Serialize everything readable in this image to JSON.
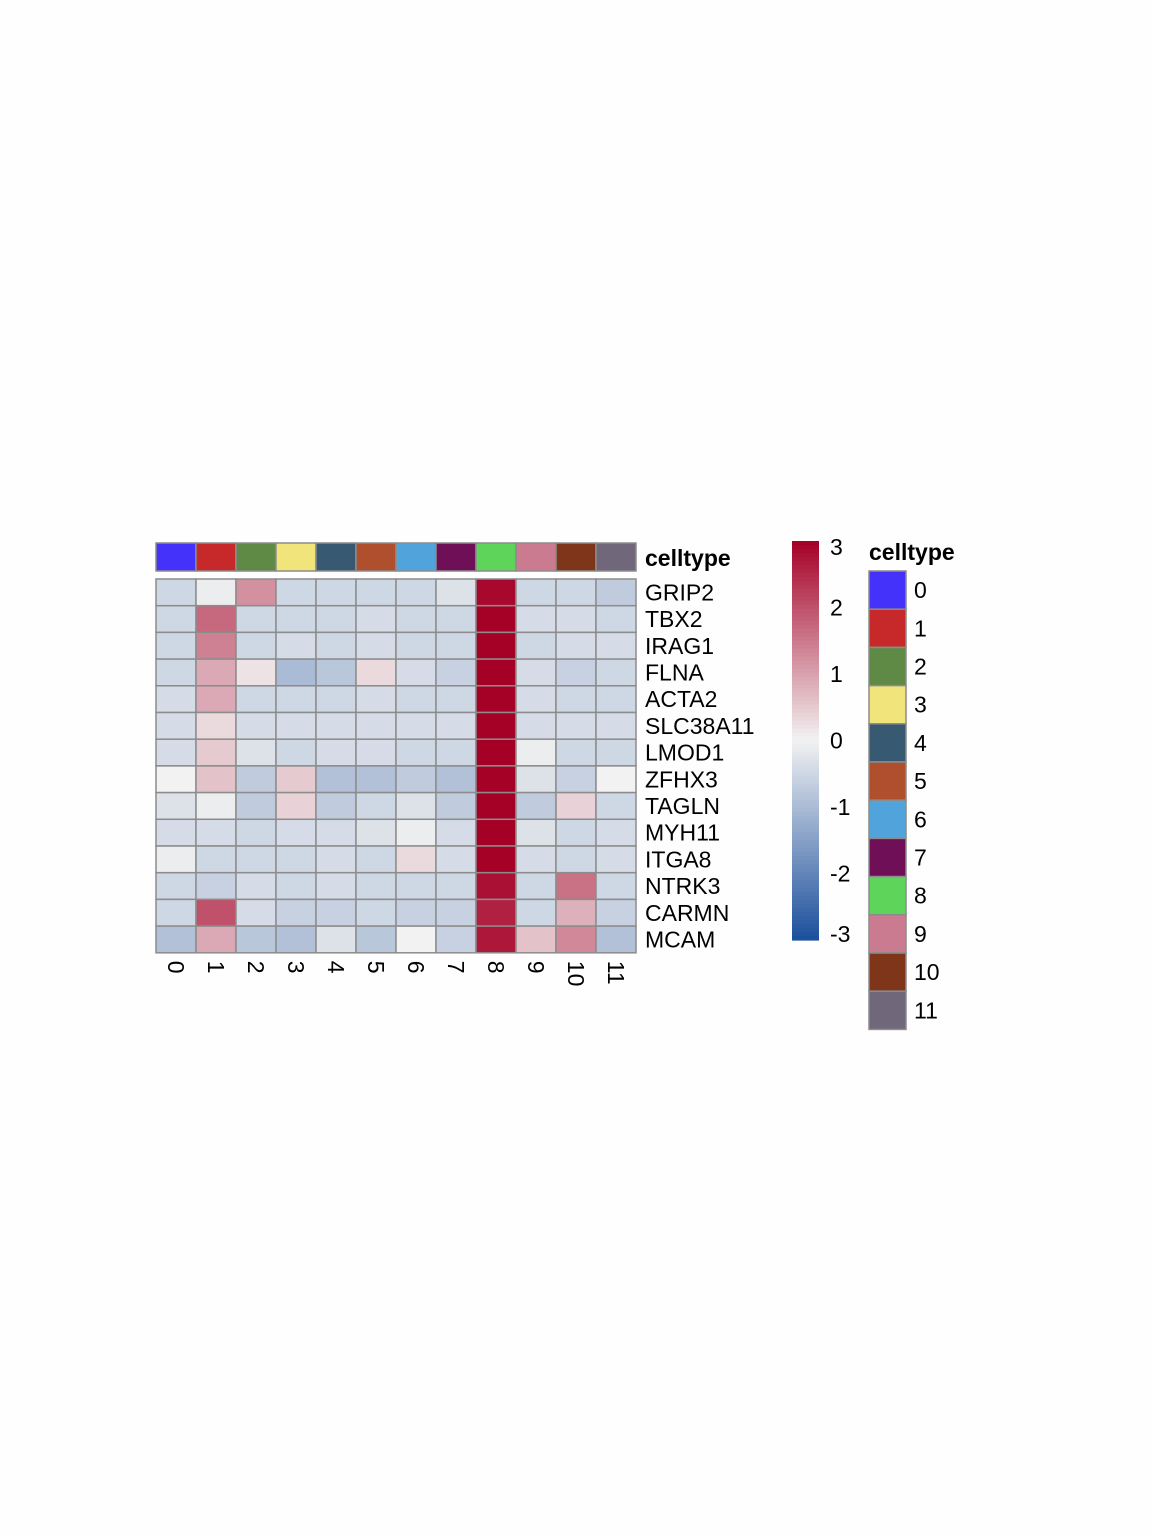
{
  "chart_data": {
    "type": "heatmap",
    "title": "",
    "xlabel": "",
    "ylabel": "",
    "columns": [
      "0",
      "1",
      "2",
      "3",
      "4",
      "5",
      "6",
      "7",
      "8",
      "9",
      "10",
      "11"
    ],
    "rows": [
      "GRIP2",
      "TBX2",
      "IRAG1",
      "FLNA",
      "ACTA2",
      "SLC38A11",
      "LMOD1",
      "ZFHX3",
      "TAGLN",
      "MYH11",
      "ITGA8",
      "NTRK3",
      "CARMN",
      "MCAM"
    ],
    "values": [
      [
        -0.5,
        -0.1,
        1.2,
        -0.5,
        -0.5,
        -0.5,
        -0.5,
        -0.3,
        2.9,
        -0.5,
        -0.5,
        -0.7
      ],
      [
        -0.5,
        1.7,
        -0.5,
        -0.5,
        -0.5,
        -0.4,
        -0.5,
        -0.5,
        3.0,
        -0.4,
        -0.4,
        -0.5
      ],
      [
        -0.5,
        1.4,
        -0.5,
        -0.4,
        -0.5,
        -0.4,
        -0.5,
        -0.5,
        3.0,
        -0.5,
        -0.4,
        -0.4
      ],
      [
        -0.5,
        0.9,
        0.2,
        -1.0,
        -0.8,
        0.3,
        -0.4,
        -0.6,
        3.0,
        -0.4,
        -0.6,
        -0.5
      ],
      [
        -0.4,
        0.9,
        -0.5,
        -0.5,
        -0.5,
        -0.4,
        -0.5,
        -0.5,
        3.0,
        -0.4,
        -0.5,
        -0.5
      ],
      [
        -0.4,
        0.3,
        -0.4,
        -0.4,
        -0.4,
        -0.4,
        -0.4,
        -0.4,
        3.1,
        -0.4,
        -0.4,
        -0.4
      ],
      [
        -0.4,
        0.5,
        -0.3,
        -0.5,
        -0.4,
        -0.4,
        -0.5,
        -0.5,
        3.1,
        -0.1,
        -0.5,
        -0.5
      ],
      [
        0.0,
        0.6,
        -0.7,
        0.5,
        -0.9,
        -0.9,
        -0.7,
        -0.9,
        3.0,
        -0.3,
        -0.6,
        0.0
      ],
      [
        -0.3,
        -0.1,
        -0.7,
        0.4,
        -0.7,
        -0.5,
        -0.3,
        -0.7,
        3.1,
        -0.7,
        0.4,
        -0.5
      ],
      [
        -0.4,
        -0.4,
        -0.5,
        -0.4,
        -0.4,
        -0.3,
        -0.1,
        -0.4,
        3.1,
        -0.3,
        -0.5,
        -0.4
      ],
      [
        -0.1,
        -0.5,
        -0.5,
        -0.5,
        -0.4,
        -0.5,
        0.3,
        -0.4,
        3.1,
        -0.4,
        -0.5,
        -0.4
      ],
      [
        -0.5,
        -0.6,
        -0.4,
        -0.5,
        -0.4,
        -0.5,
        -0.5,
        -0.5,
        2.8,
        -0.5,
        1.6,
        -0.5
      ],
      [
        -0.5,
        2.0,
        -0.4,
        -0.6,
        -0.6,
        -0.5,
        -0.6,
        -0.6,
        2.6,
        -0.5,
        0.8,
        -0.6
      ],
      [
        -0.9,
        0.9,
        -0.8,
        -0.9,
        -0.3,
        -0.8,
        0.0,
        -0.6,
        2.7,
        0.6,
        1.3,
        -0.9
      ]
    ],
    "color_scale": {
      "min": -3,
      "max": 3,
      "ticks": [
        "3",
        "2",
        "1",
        "0",
        "-1",
        "-2",
        "-3"
      ],
      "low_color": "#1b4f9c",
      "mid_color": "#f2f2f2",
      "high_color": "#a50026"
    },
    "annotation": {
      "label": "celltype",
      "legend_title": "celltype",
      "colors": [
        "#4432fb",
        "#c7282a",
        "#5f8a46",
        "#f0e47a",
        "#385972",
        "#b04f2e",
        "#50a3db",
        "#6e0f58",
        "#5ed55a",
        "#cb7b8f",
        "#7e3519",
        "#70677b"
      ]
    },
    "legend_placement": "right"
  }
}
